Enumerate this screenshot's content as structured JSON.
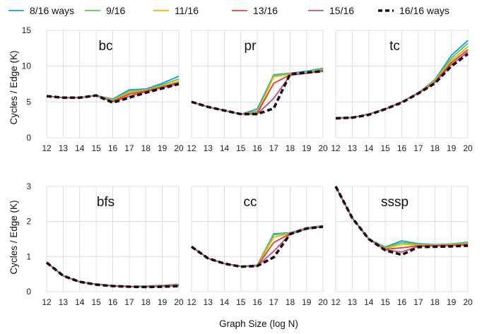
{
  "chart_data": {
    "type": "line",
    "legend_position": "top",
    "grid": true,
    "xlabel": "Graph Size (log N)",
    "ylabel": "Cycles / Edge (K)",
    "x": [
      12,
      13,
      14,
      15,
      16,
      17,
      18,
      19,
      20
    ],
    "series_meta": [
      {
        "name": "8/16 ways",
        "color": "#1a9fd8",
        "dashed": false
      },
      {
        "name": "9/16",
        "color": "#5ac85a",
        "dashed": false
      },
      {
        "name": "11/16",
        "color": "#f0b400",
        "dashed": false
      },
      {
        "name": "13/16",
        "color": "#e0443a",
        "dashed": false
      },
      {
        "name": "15/16",
        "color": "#c2508a",
        "dashed": false
      },
      {
        "name": "16/16 ways",
        "color": "#111111",
        "dashed": true
      }
    ],
    "panels": [
      {
        "title": "bc",
        "ylim": [
          0,
          15
        ],
        "yticks": [
          0,
          5,
          10,
          15
        ],
        "series": [
          {
            "name": "8/16 ways",
            "values": [
              5.8,
              5.6,
              5.6,
              5.9,
              5.4,
              6.7,
              6.8,
              7.6,
              8.6
            ]
          },
          {
            "name": "9/16",
            "values": [
              5.8,
              5.6,
              5.6,
              5.9,
              5.3,
              6.5,
              6.7,
              7.4,
              8.2
            ]
          },
          {
            "name": "11/16",
            "values": [
              5.8,
              5.6,
              5.6,
              5.9,
              5.2,
              6.3,
              6.6,
              7.2,
              7.9
            ]
          },
          {
            "name": "13/16",
            "values": [
              5.8,
              5.6,
              5.6,
              5.9,
              5.1,
              6.1,
              6.5,
              7.1,
              7.7
            ]
          },
          {
            "name": "15/16",
            "values": [
              5.8,
              5.6,
              5.6,
              5.9,
              5.0,
              5.8,
              6.4,
              7.0,
              7.5
            ]
          },
          {
            "name": "16/16 ways",
            "values": [
              5.8,
              5.6,
              5.6,
              5.9,
              4.9,
              5.6,
              6.3,
              6.9,
              7.5
            ]
          }
        ]
      },
      {
        "title": "pr",
        "ylim": [
          0,
          15
        ],
        "yticks": [
          0,
          5,
          10,
          15
        ],
        "series": [
          {
            "name": "8/16 ways",
            "values": [
              5.0,
              4.3,
              3.8,
              3.3,
              4.0,
              8.8,
              9.0,
              9.3,
              9.7
            ]
          },
          {
            "name": "9/16",
            "values": [
              5.0,
              4.3,
              3.8,
              3.3,
              3.7,
              8.7,
              8.9,
              9.2,
              9.6
            ]
          },
          {
            "name": "11/16",
            "values": [
              5.0,
              4.3,
              3.8,
              3.3,
              3.5,
              8.5,
              8.9,
              9.1,
              9.5
            ]
          },
          {
            "name": "13/16",
            "values": [
              5.0,
              4.3,
              3.8,
              3.3,
              3.4,
              7.6,
              8.8,
              9.0,
              9.4
            ]
          },
          {
            "name": "15/16",
            "values": [
              5.0,
              4.3,
              3.8,
              3.3,
              3.3,
              5.5,
              8.7,
              9.0,
              9.3
            ]
          },
          {
            "name": "16/16 ways",
            "values": [
              5.0,
              4.3,
              3.8,
              3.3,
              3.3,
              4.1,
              8.9,
              9.1,
              9.3
            ]
          }
        ]
      },
      {
        "title": "tc",
        "ylim": [
          0,
          15
        ],
        "yticks": [
          0,
          5,
          10,
          15
        ],
        "series": [
          {
            "name": "8/16 ways",
            "values": [
              2.8,
              2.8,
              3.3,
              4.0,
              5.0,
              6.3,
              8.1,
              11.5,
              13.6
            ]
          },
          {
            "name": "9/16",
            "values": [
              2.8,
              2.8,
              3.3,
              4.0,
              5.0,
              6.3,
              8.0,
              11.1,
              13.2
            ]
          },
          {
            "name": "11/16",
            "values": [
              2.7,
              2.8,
              3.3,
              4.0,
              5.0,
              6.3,
              7.9,
              10.8,
              12.7
            ]
          },
          {
            "name": "13/16",
            "values": [
              2.7,
              2.8,
              3.3,
              4.0,
              5.0,
              6.2,
              7.8,
              10.5,
              12.3
            ]
          },
          {
            "name": "15/16",
            "values": [
              2.7,
              2.8,
              3.3,
              4.0,
              5.0,
              6.2,
              7.7,
              10.2,
              12.0
            ]
          },
          {
            "name": "16/16 ways",
            "values": [
              2.7,
              2.8,
              3.2,
              4.0,
              4.9,
              6.2,
              7.6,
              10.0,
              11.7
            ]
          }
        ]
      },
      {
        "title": "bfs",
        "ylim": [
          0,
          3
        ],
        "yticks": [
          0,
          1,
          2,
          3
        ],
        "series": [
          {
            "name": "8/16 ways",
            "values": [
              0.83,
              0.45,
              0.28,
              0.21,
              0.17,
              0.15,
              0.16,
              0.18,
              0.21
            ]
          },
          {
            "name": "9/16",
            "values": [
              0.83,
              0.45,
              0.28,
              0.21,
              0.17,
              0.15,
              0.15,
              0.17,
              0.2
            ]
          },
          {
            "name": "11/16",
            "values": [
              0.83,
              0.45,
              0.28,
              0.21,
              0.17,
              0.15,
              0.15,
              0.17,
              0.19
            ]
          },
          {
            "name": "13/16",
            "values": [
              0.83,
              0.45,
              0.28,
              0.21,
              0.17,
              0.14,
              0.14,
              0.16,
              0.18
            ]
          },
          {
            "name": "15/16",
            "values": [
              0.83,
              0.45,
              0.28,
              0.21,
              0.16,
              0.14,
              0.14,
              0.15,
              0.17
            ]
          },
          {
            "name": "16/16 ways",
            "values": [
              0.83,
              0.45,
              0.28,
              0.2,
              0.16,
              0.14,
              0.13,
              0.14,
              0.16
            ]
          }
        ]
      },
      {
        "title": "cc",
        "ylim": [
          0,
          3
        ],
        "yticks": [
          0,
          1,
          2,
          3
        ],
        "series": [
          {
            "name": "8/16 ways",
            "values": [
              1.28,
              0.95,
              0.8,
              0.72,
              0.76,
              1.65,
              1.68,
              1.82,
              1.88
            ]
          },
          {
            "name": "9/16",
            "values": [
              1.28,
              0.95,
              0.8,
              0.72,
              0.75,
              1.62,
              1.67,
              1.81,
              1.87
            ]
          },
          {
            "name": "11/16",
            "values": [
              1.28,
              0.95,
              0.8,
              0.72,
              0.74,
              1.55,
              1.66,
              1.8,
              1.86
            ]
          },
          {
            "name": "13/16",
            "values": [
              1.28,
              0.95,
              0.8,
              0.72,
              0.73,
              1.4,
              1.65,
              1.79,
              1.85
            ]
          },
          {
            "name": "15/16",
            "values": [
              1.28,
              0.95,
              0.8,
              0.72,
              0.73,
              1.15,
              1.64,
              1.79,
              1.85
            ]
          },
          {
            "name": "16/16 ways",
            "values": [
              1.28,
              0.95,
              0.8,
              0.71,
              0.73,
              0.98,
              1.64,
              1.8,
              1.85
            ]
          }
        ]
      },
      {
        "title": "sssp",
        "ylim": [
          0,
          3
        ],
        "yticks": [
          0,
          1,
          2,
          3
        ],
        "series": [
          {
            "name": "8/16 ways",
            "values": [
              3.0,
              2.1,
              1.5,
              1.27,
              1.45,
              1.37,
              1.34,
              1.36,
              1.41
            ]
          },
          {
            "name": "9/16",
            "values": [
              3.0,
              2.1,
              1.5,
              1.25,
              1.4,
              1.35,
              1.33,
              1.35,
              1.39
            ]
          },
          {
            "name": "11/16",
            "values": [
              3.0,
              2.1,
              1.5,
              1.23,
              1.35,
              1.33,
              1.32,
              1.34,
              1.37
            ]
          },
          {
            "name": "13/16",
            "values": [
              3.0,
              2.1,
              1.5,
              1.21,
              1.25,
              1.31,
              1.31,
              1.32,
              1.35
            ]
          },
          {
            "name": "15/16",
            "values": [
              3.0,
              2.1,
              1.5,
              1.19,
              1.13,
              1.29,
              1.3,
              1.31,
              1.33
            ]
          },
          {
            "name": "16/16 ways",
            "values": [
              3.0,
              2.1,
              1.5,
              1.18,
              1.05,
              1.27,
              1.28,
              1.29,
              1.31
            ]
          }
        ]
      }
    ]
  }
}
